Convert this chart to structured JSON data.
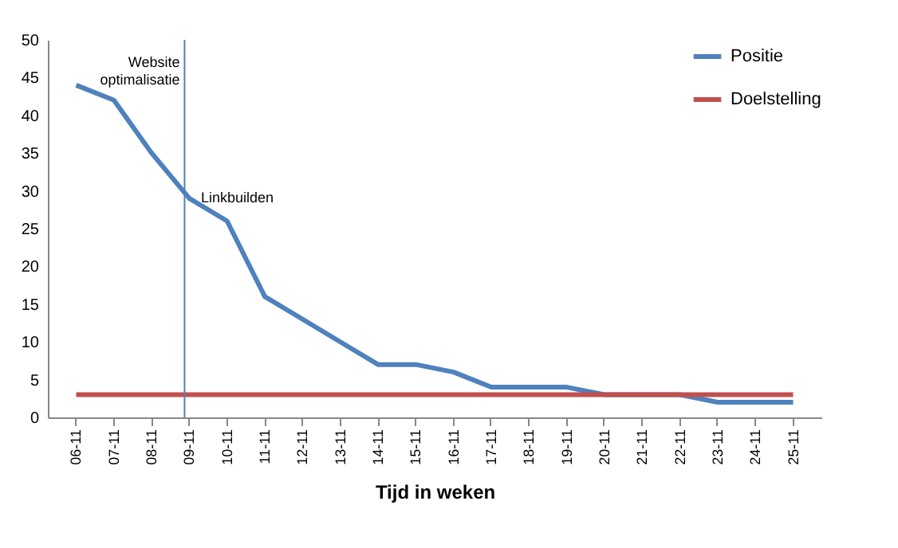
{
  "chart_data": {
    "type": "line",
    "xlabel": "Tijd in weken",
    "categories": [
      "06-11",
      "07-11",
      "08-11",
      "09-11",
      "10-11",
      "11-11",
      "12-11",
      "13-11",
      "14-11",
      "15-11",
      "16-11",
      "17-11",
      "18-11",
      "19-11",
      "20-11",
      "21-11",
      "22-11",
      "23-11",
      "24-11",
      "25-11"
    ],
    "series": [
      {
        "name": "Positie",
        "color": "#4f81bd",
        "values": [
          44,
          42,
          35,
          29,
          26,
          16,
          13,
          10,
          7,
          7,
          6,
          4,
          4,
          4,
          3,
          3,
          3,
          2,
          2,
          2
        ]
      },
      {
        "name": "Doelstelling",
        "color": "#c0504d",
        "values": [
          3,
          3,
          3,
          3,
          3,
          3,
          3,
          3,
          3,
          3,
          3,
          3,
          3,
          3,
          3,
          3,
          3,
          3,
          3,
          3
        ]
      }
    ],
    "ylim": [
      0,
      50
    ],
    "yticks": [
      0,
      5,
      10,
      15,
      20,
      25,
      30,
      35,
      40,
      45,
      50
    ],
    "grid": false,
    "legend": "top right",
    "marker": "none",
    "line_style": "solid",
    "ref_lines": [
      {
        "axis": "x",
        "value": "09-11",
        "label": "Website optimalisatie",
        "color": "#4f81bd"
      }
    ],
    "annotations": [
      "Linkbuilden"
    ]
  }
}
